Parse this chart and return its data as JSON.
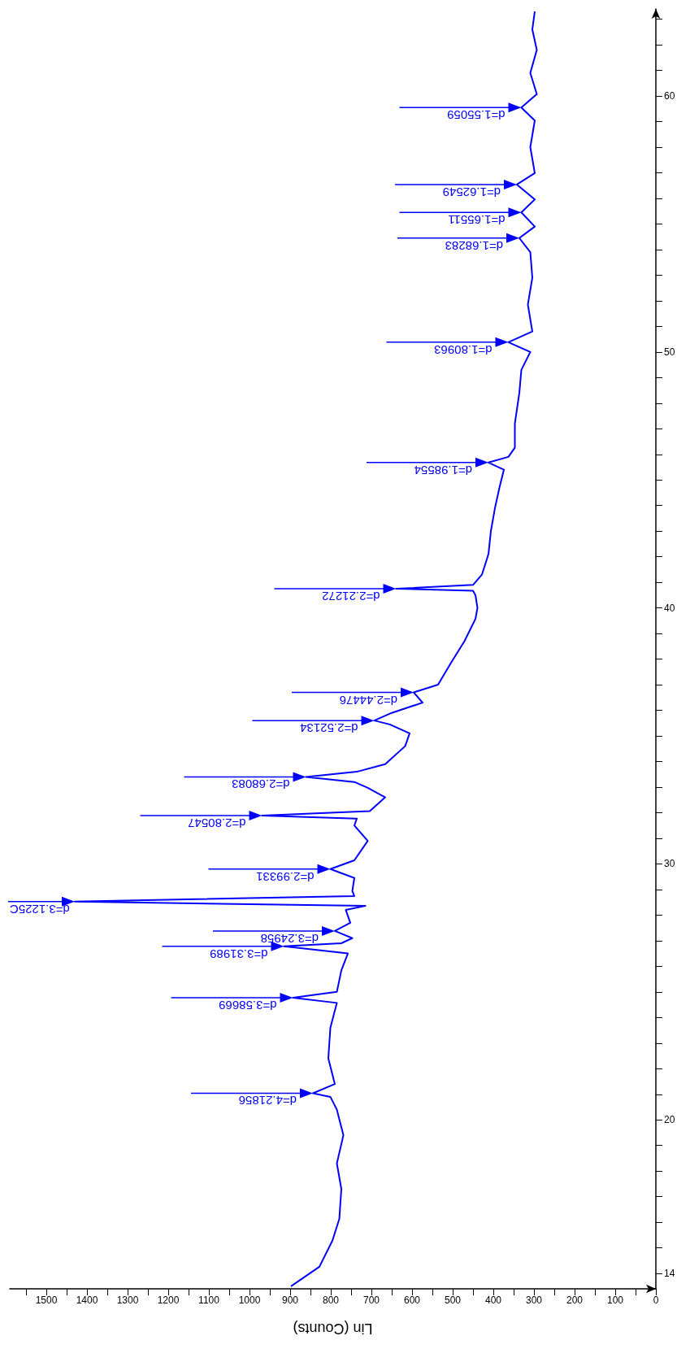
{
  "chart_data": {
    "type": "line",
    "xlabel": "Lin (Counts)",
    "x": [
      898,
      828,
      796,
      779,
      774,
      785,
      769,
      785,
      801,
      844,
      790,
      806,
      801,
      785,
      893,
      785,
      774,
      758,
      915,
      774,
      747,
      790,
      752,
      763,
      715,
      1430,
      742,
      747,
      742,
      801,
      742,
      709,
      742,
      736,
      969,
      704,
      666,
      709,
      742,
      861,
      736,
      666,
      617,
      606,
      655,
      693,
      650,
      574,
      596,
      536,
      504,
      471,
      444,
      439,
      444,
      450,
      639,
      450,
      428,
      412,
      406,
      396,
      385,
      374,
      412,
      363,
      347,
      347,
      336,
      331,
      309,
      363,
      304,
      315,
      304,
      309,
      336,
      298,
      331,
      298,
      342,
      298,
      309,
      298,
      331,
      293,
      309,
      293,
      304,
      298
    ],
    "series": [
      {
        "color": "#0000ff",
        "values": [
          13.5,
          14.26,
          15.28,
          16.13,
          17.3,
          18.3,
          19.4,
          20.4,
          20.9,
          21.04,
          21.4,
          22.4,
          23.6,
          24.57,
          24.77,
          25.0,
          25.84,
          26.5,
          26.78,
          26.9,
          27.1,
          27.38,
          27.7,
          28.2,
          28.36,
          28.53,
          28.74,
          28.94,
          29.45,
          29.8,
          30.14,
          30.9,
          31.5,
          31.77,
          31.89,
          32.06,
          32.6,
          32.97,
          33.2,
          33.4,
          33.6,
          33.9,
          34.6,
          35.1,
          35.45,
          35.6,
          35.9,
          36.3,
          36.7,
          37.0,
          37.86,
          38.7,
          39.57,
          40.0,
          40.5,
          40.67,
          40.75,
          40.9,
          41.3,
          42.1,
          43.0,
          43.9,
          44.7,
          45.4,
          45.68,
          45.9,
          46.26,
          47.2,
          48.4,
          49.3,
          50.0,
          50.38,
          50.8,
          51.85,
          52.9,
          53.9,
          54.45,
          54.9,
          55.45,
          55.96,
          56.54,
          56.99,
          58.0,
          59.04,
          59.55,
          60.07,
          60.9,
          61.8,
          62.6,
          63.3
        ]
      }
    ],
    "ylim": [
      13.4,
      63.4
    ],
    "yticks": [
      {
        "value": 14,
        "label": "14"
      },
      {
        "value": 15,
        "label": null
      },
      {
        "value": 16,
        "label": null
      },
      {
        "value": 17,
        "label": null
      },
      {
        "value": 18,
        "label": null
      },
      {
        "value": 19,
        "label": null
      },
      20,
      {
        "value": 21,
        "label": null
      },
      {
        "value": 22,
        "label": null
      },
      {
        "value": 23,
        "label": null
      },
      {
        "value": 24,
        "label": null
      },
      {
        "value": 25,
        "label": null
      },
      {
        "value": 26,
        "label": null
      },
      {
        "value": 27,
        "label": null
      },
      {
        "value": 28,
        "label": null
      },
      {
        "value": 29,
        "label": null
      },
      30,
      {
        "value": 31,
        "label": null
      },
      {
        "value": 32,
        "label": null
      },
      {
        "value": 33,
        "label": null
      },
      {
        "value": 34,
        "label": null
      },
      {
        "value": 35,
        "label": null
      },
      {
        "value": 36,
        "label": null
      },
      {
        "value": 37,
        "label": null
      },
      {
        "value": 38,
        "label": null
      },
      {
        "value": 39,
        "label": null
      },
      40,
      {
        "value": 41,
        "label": null
      },
      {
        "value": 42,
        "label": null
      },
      {
        "value": 43,
        "label": null
      },
      {
        "value": 44,
        "label": null
      },
      {
        "value": 45,
        "label": null
      },
      {
        "value": 46,
        "label": null
      },
      {
        "value": 47,
        "label": null
      },
      {
        "value": 48,
        "label": null
      },
      {
        "value": 49,
        "label": null
      },
      50,
      {
        "value": 51,
        "label": null
      },
      {
        "value": 52,
        "label": null
      },
      {
        "value": 53,
        "label": null
      },
      {
        "value": 54,
        "label": null
      },
      {
        "value": 55,
        "label": null
      },
      {
        "value": 56,
        "label": null
      },
      {
        "value": 57,
        "label": null
      },
      {
        "value": 58,
        "label": null
      },
      {
        "value": 59,
        "label": null
      },
      60,
      {
        "value": 61,
        "label": null
      },
      {
        "value": 62,
        "label": null
      },
      {
        "value": 63,
        "label": null
      }
    ],
    "xlim": [
      1590,
      0
    ],
    "xticks": [
      0,
      {
        "value": 50,
        "label": null
      },
      100,
      {
        "value": 150,
        "label": null
      },
      200,
      {
        "value": 250,
        "label": null
      },
      300,
      {
        "value": 350,
        "label": null
      },
      400,
      {
        "value": 450,
        "label": null
      },
      500,
      {
        "value": 550,
        "label": null
      },
      600,
      {
        "value": 650,
        "label": null
      },
      700,
      {
        "value": 750,
        "label": null
      },
      800,
      {
        "value": 850,
        "label": null
      },
      900,
      {
        "value": 950,
        "label": null
      },
      1000,
      {
        "value": 1050,
        "label": null
      },
      1100,
      {
        "value": 1150,
        "label": null
      },
      1200,
      {
        "value": 1250,
        "label": null
      },
      1300,
      {
        "value": 1350,
        "label": null
      },
      1400,
      {
        "value": 1450,
        "label": null
      },
      1500,
      {
        "value": 1550,
        "label": null
      }
    ],
    "grid": false,
    "annotations": [
      {
        "text": "d=4.21856",
        "x": 844,
        "y": 21.04
      },
      {
        "text": "d=3.58669",
        "x": 893,
        "y": 24.77
      },
      {
        "text": "d=3.31989",
        "x": 915,
        "y": 26.78
      },
      {
        "text": "d=3.24958",
        "x": 790,
        "y": 27.38
      },
      {
        "text": "d=3.1225C",
        "x": 1430,
        "y": 28.53
      },
      {
        "text": "d=2.99331",
        "x": 801,
        "y": 29.8
      },
      {
        "text": "d=2.80547",
        "x": 969,
        "y": 31.89
      },
      {
        "text": "d=2.68083",
        "x": 861,
        "y": 33.4
      },
      {
        "text": "d=2.52134",
        "x": 693,
        "y": 35.6
      },
      {
        "text": "d=2.44476",
        "x": 596,
        "y": 36.7
      },
      {
        "text": "d=2.21272",
        "x": 639,
        "y": 40.75
      },
      {
        "text": "d=1.98554",
        "x": 412,
        "y": 45.68
      },
      {
        "text": "d=1.80963",
        "x": 363,
        "y": 50.38
      },
      {
        "text": "d=1.68283",
        "x": 336,
        "y": 54.45
      },
      {
        "text": "d=1.65511",
        "x": 331,
        "y": 55.45
      },
      {
        "text": "d=1.62549",
        "x": 342,
        "y": 56.54
      },
      {
        "text": "d=1.55059",
        "x": 331,
        "y": 59.55
      }
    ]
  }
}
